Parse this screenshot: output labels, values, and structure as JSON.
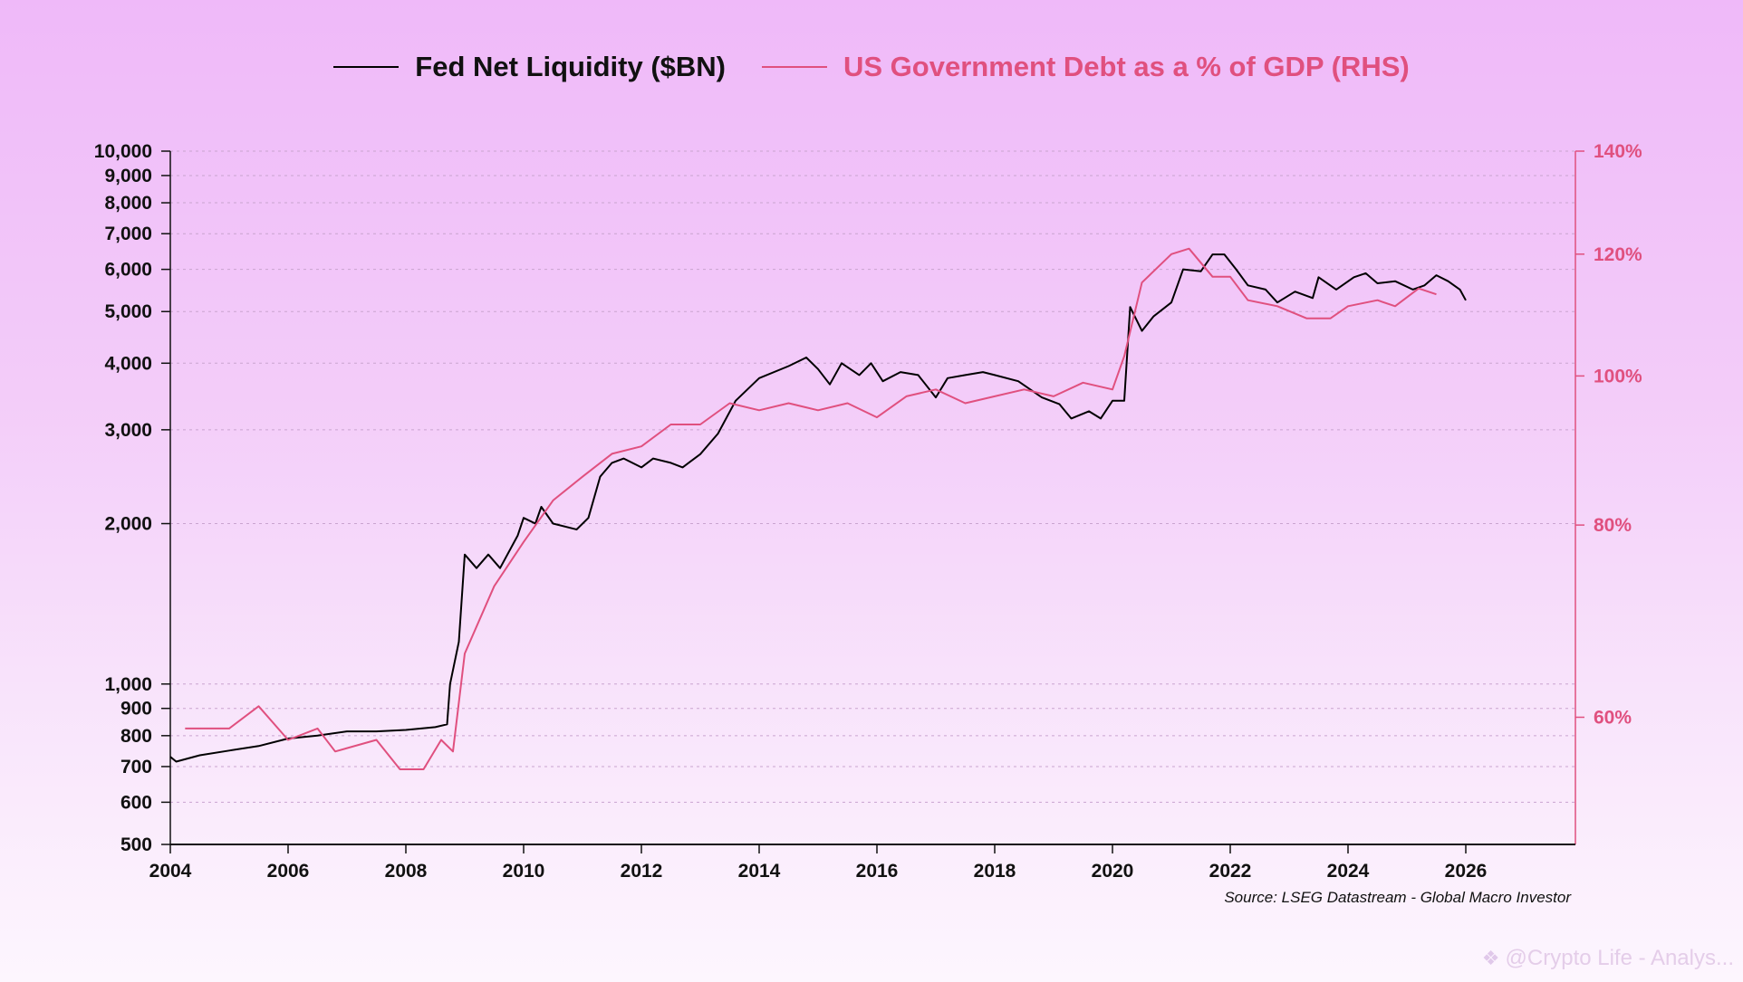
{
  "legend": [
    {
      "label": "Fed Net Liquidity ($BN)",
      "color": "#000000"
    },
    {
      "label": "US Government Debt as a % of GDP (RHS)",
      "color": "#e0507f"
    }
  ],
  "source": "Source: LSEG Datastream - Global Macro Investor",
  "watermark": {
    "icon": "binance-diamond-icon",
    "text": "@Crypto Life - Analys..."
  },
  "chart_data": {
    "type": "line",
    "title": "",
    "xlabel": "",
    "ylabel": "Fed Net Liquidity ($BN)",
    "y2label": "US Government Debt as a % of GDP",
    "legend_position": "top-center",
    "grid": true,
    "x_range": [
      2004,
      2027.85
    ],
    "x_ticks": [
      "2004",
      "2006",
      "2008",
      "2010",
      "2012",
      "2014",
      "2016",
      "2018",
      "2020",
      "2022",
      "2024",
      "2026"
    ],
    "y_scale": "log",
    "y_range": [
      500,
      10000
    ],
    "y_ticks": [
      {
        "value": 500,
        "label": "500"
      },
      {
        "value": 600,
        "label": "600"
      },
      {
        "value": 700,
        "label": "700"
      },
      {
        "value": 800,
        "label": "800"
      },
      {
        "value": 900,
        "label": "900"
      },
      {
        "value": 1000,
        "label": "1,000"
      },
      {
        "value": 2000,
        "label": "2,000"
      },
      {
        "value": 3000,
        "label": "3,000"
      },
      {
        "value": 4000,
        "label": "4,000"
      },
      {
        "value": 5000,
        "label": "5,000"
      },
      {
        "value": 6000,
        "label": "6,000"
      },
      {
        "value": 7000,
        "label": "7,000"
      },
      {
        "value": 8000,
        "label": "8,000"
      },
      {
        "value": 9000,
        "label": "9,000"
      },
      {
        "value": 10000,
        "label": "10,000"
      }
    ],
    "y2_scale": "log",
    "y2_range": [
      49.6,
      140
    ],
    "y2_ticks": [
      {
        "value": 60,
        "label": "60%"
      },
      {
        "value": 80,
        "label": "80%"
      },
      {
        "value": 100,
        "label": "100%"
      },
      {
        "value": 120,
        "label": "120%"
      },
      {
        "value": 140,
        "label": "140%"
      }
    ],
    "series": [
      {
        "name": "Fed Net Liquidity ($BN)",
        "axis": "left",
        "color": "#000000",
        "x": [
          2004.0,
          2004.1,
          2004.5,
          2005.0,
          2005.5,
          2006.0,
          2006.5,
          2007.0,
          2007.5,
          2008.0,
          2008.5,
          2008.7,
          2008.75,
          2008.9,
          2009.0,
          2009.2,
          2009.4,
          2009.6,
          2009.9,
          2010.0,
          2010.2,
          2010.3,
          2010.5,
          2010.9,
          2011.1,
          2011.3,
          2011.5,
          2011.7,
          2012.0,
          2012.2,
          2012.5,
          2012.7,
          2013.0,
          2013.3,
          2013.6,
          2014.0,
          2014.5,
          2014.8,
          2015.0,
          2015.2,
          2015.4,
          2015.7,
          2015.9,
          2016.1,
          2016.4,
          2016.7,
          2017.0,
          2017.2,
          2017.5,
          2017.8,
          2018.0,
          2018.4,
          2018.8,
          2019.1,
          2019.3,
          2019.6,
          2019.8,
          2020.0,
          2020.2,
          2020.3,
          2020.5,
          2020.7,
          2021.0,
          2021.2,
          2021.5,
          2021.7,
          2021.9,
          2022.1,
          2022.3,
          2022.6,
          2022.8,
          2023.1,
          2023.4,
          2023.5,
          2023.8,
          2024.1,
          2024.3,
          2024.5,
          2024.8,
          2025.1,
          2025.3,
          2025.5,
          2025.7,
          2025.9,
          2026.0
        ],
        "values": [
          730,
          715,
          735,
          750,
          765,
          790,
          800,
          815,
          815,
          820,
          830,
          840,
          1000,
          1200,
          1750,
          1650,
          1750,
          1650,
          1900,
          2050,
          2000,
          2150,
          2000,
          1950,
          2050,
          2450,
          2600,
          2650,
          2550,
          2650,
          2600,
          2550,
          2700,
          2950,
          3400,
          3750,
          3950,
          4100,
          3900,
          3650,
          4000,
          3800,
          4000,
          3700,
          3850,
          3800,
          3450,
          3750,
          3800,
          3850,
          3800,
          3700,
          3450,
          3350,
          3150,
          3250,
          3150,
          3400,
          3400,
          5100,
          4600,
          4900,
          5200,
          6000,
          5950,
          6400,
          6400,
          6000,
          5600,
          5500,
          5200,
          5450,
          5300,
          5800,
          5500,
          5800,
          5900,
          5650,
          5700,
          5500,
          5600,
          5850,
          5700,
          5500,
          5250
        ]
      },
      {
        "name": "US Government Debt as a % of GDP (RHS)",
        "axis": "right",
        "color": "#e0507f",
        "x": [
          2004.25,
          2005.0,
          2005.5,
          2006.0,
          2006.5,
          2006.8,
          2007.5,
          2007.9,
          2008.3,
          2008.6,
          2008.8,
          2009.0,
          2009.5,
          2010.0,
          2010.5,
          2011.0,
          2011.5,
          2012.0,
          2012.5,
          2013.0,
          2013.5,
          2014.0,
          2014.5,
          2015.0,
          2015.5,
          2016.0,
          2016.5,
          2017.0,
          2017.5,
          2018.0,
          2018.5,
          2019.0,
          2019.5,
          2020.0,
          2020.2,
          2020.5,
          2021.0,
          2021.3,
          2021.7,
          2022.0,
          2022.3,
          2022.8,
          2023.3,
          2023.7,
          2024.0,
          2024.5,
          2024.8,
          2025.2,
          2025.5
        ],
        "values": [
          59,
          59,
          61,
          58,
          59,
          57,
          58,
          55.5,
          55.5,
          58,
          57,
          66,
          73,
          78,
          83,
          86,
          89,
          90,
          93,
          93,
          96,
          95,
          96,
          95,
          96,
          94,
          97,
          98,
          96,
          97,
          98,
          97,
          99,
          98,
          103,
          115,
          120,
          121,
          116,
          116,
          112,
          111,
          109,
          109,
          111,
          112,
          111,
          114,
          113
        ]
      }
    ]
  }
}
